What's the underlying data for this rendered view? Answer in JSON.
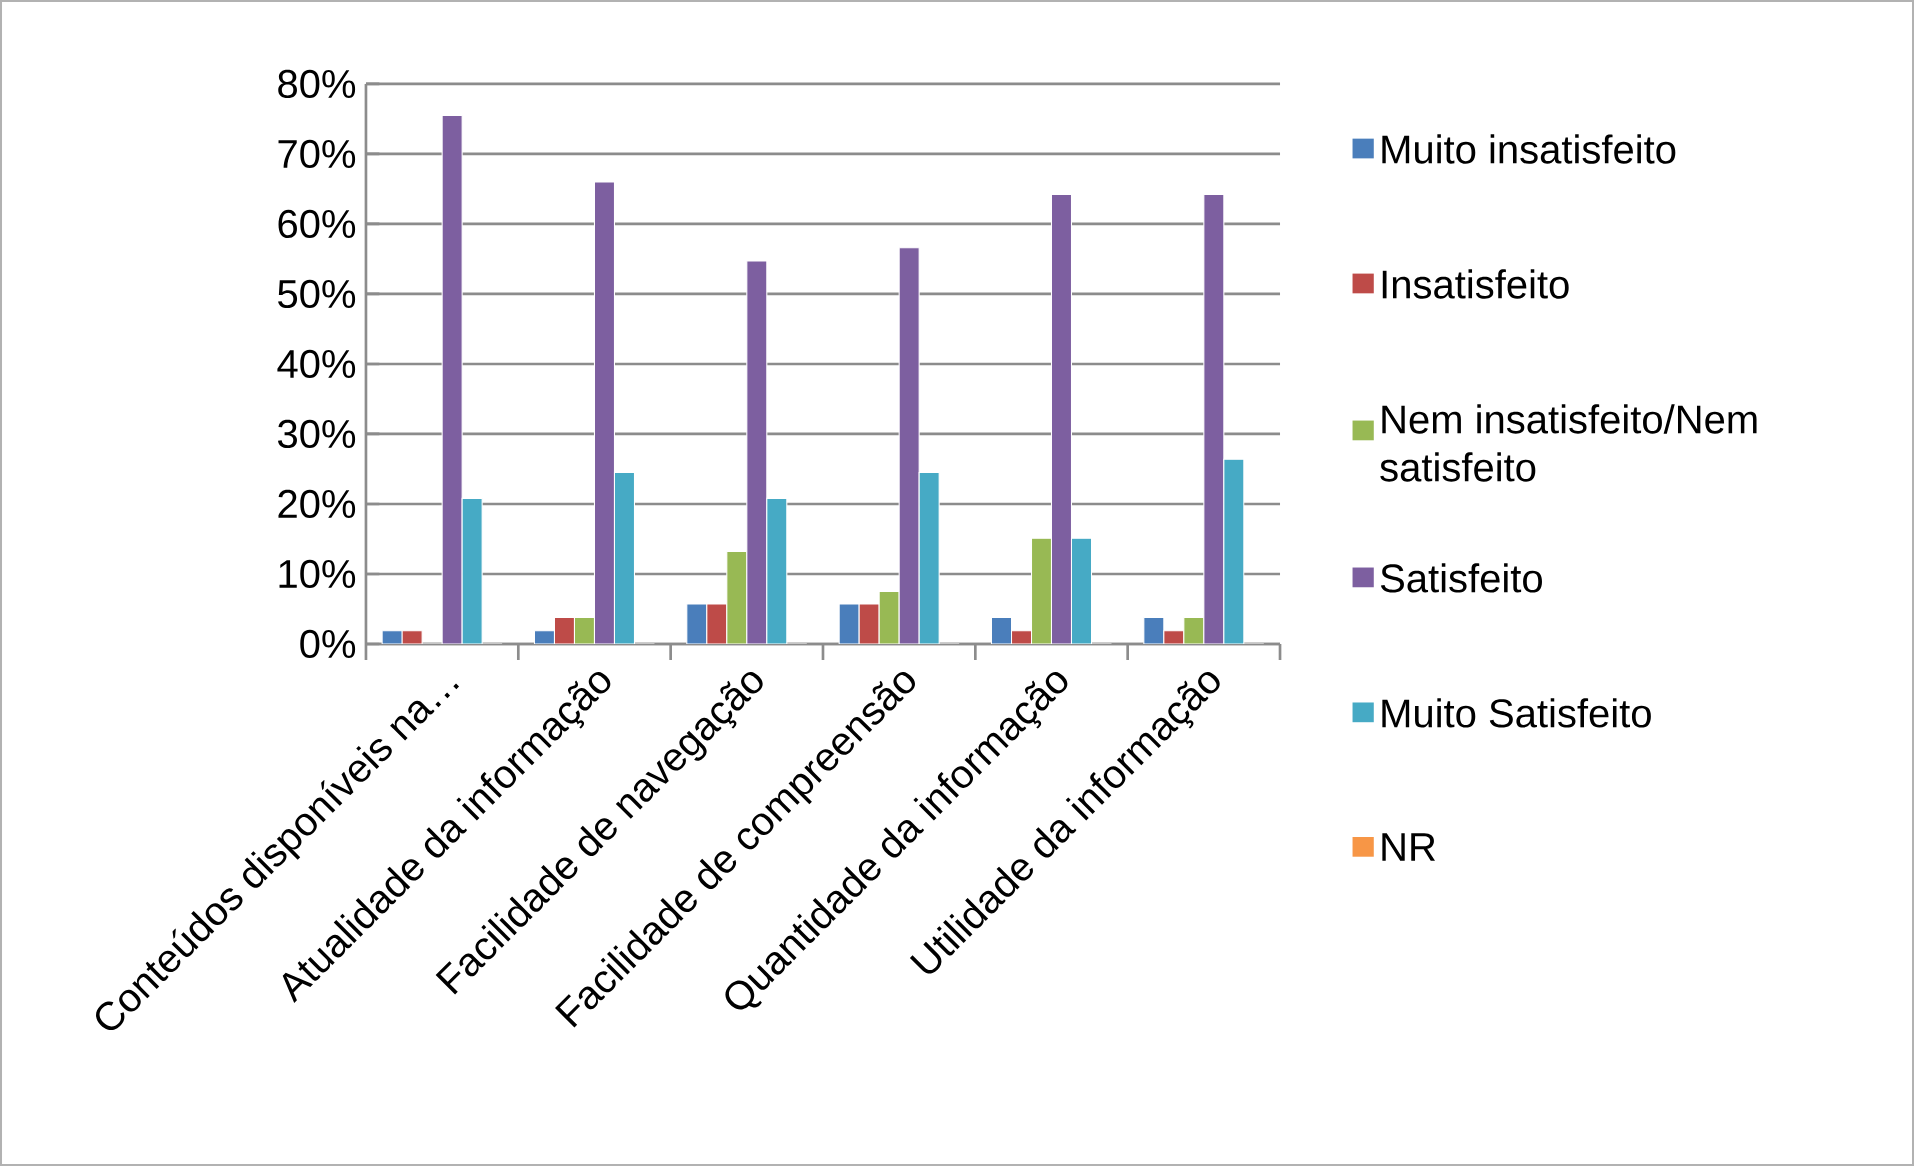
{
  "chart_data": {
    "type": "bar",
    "categories": [
      "Conteúdos disponíveis na…",
      "Atualidade da informação",
      "Facilidade de navegação",
      "Facilidade de compreensão",
      "Quantidade da informação",
      "Utilidade da informação"
    ],
    "series": [
      {
        "name": "Muito insatisfeito",
        "color": "#4a7ebb",
        "values": [
          1.9,
          1.9,
          5.7,
          5.7,
          3.8,
          3.8
        ]
      },
      {
        "name": "Insatisfeito",
        "color": "#be4b48",
        "values": [
          1.9,
          3.8,
          5.7,
          5.7,
          1.9,
          1.9
        ]
      },
      {
        "name": "Nem insatisfeito/Nem satisfeito",
        "color": "#98b954",
        "values": [
          0,
          3.8,
          13.2,
          7.5,
          15.1,
          3.8
        ]
      },
      {
        "name": "Satisfeito",
        "color": "#7d5fa0",
        "values": [
          75.5,
          66.0,
          54.7,
          56.6,
          64.2,
          64.2
        ]
      },
      {
        "name": "Muito Satisfeito",
        "color": "#46aac5",
        "values": [
          20.8,
          24.5,
          20.8,
          24.5,
          15.1,
          26.4
        ]
      },
      {
        "name": "NR",
        "color": "#f79646",
        "values": [
          0,
          0,
          0,
          0,
          0,
          0
        ]
      }
    ],
    "ylim": [
      0,
      80
    ],
    "yticks": [
      {
        "value": 0,
        "label": "0%"
      },
      {
        "value": 10,
        "label": "10%"
      },
      {
        "value": 20,
        "label": "20%"
      },
      {
        "value": 30,
        "label": "30%"
      },
      {
        "value": 40,
        "label": "40%"
      },
      {
        "value": 50,
        "label": "50%"
      },
      {
        "value": 60,
        "label": "60%"
      },
      {
        "value": 70,
        "label": "70%"
      },
      {
        "value": 80,
        "label": "80%"
      }
    ],
    "grid": "y",
    "legend": "right"
  }
}
